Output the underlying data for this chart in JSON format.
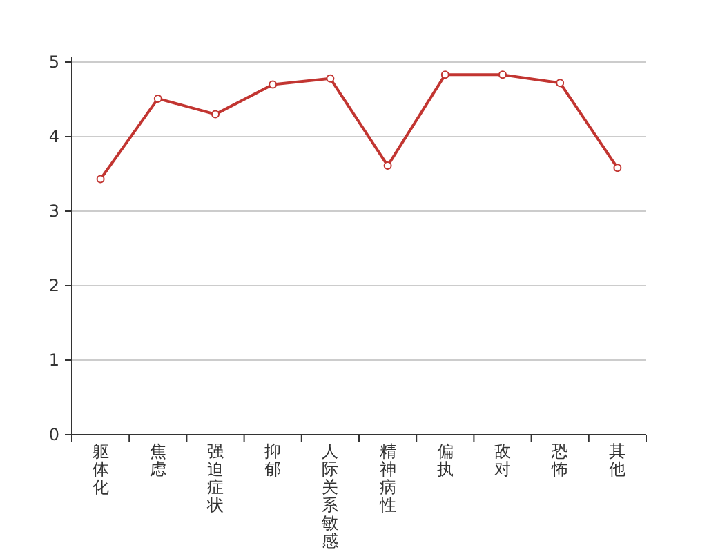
{
  "chart_data": {
    "type": "line",
    "categories": [
      "躯体化",
      "焦虑",
      "强迫症状",
      "抑郁",
      "人际关系敏感",
      "精神病性",
      "偏执",
      "敌对",
      "恐怖",
      "其他"
    ],
    "values": [
      3.43,
      4.51,
      4.3,
      4.7,
      4.78,
      3.61,
      4.83,
      4.83,
      4.72,
      3.58
    ],
    "color": "#c23531",
    "ylim": [
      0,
      5
    ],
    "yticks": [
      0,
      1,
      2,
      3,
      4,
      5
    ],
    "grid": "y",
    "marker": "circle"
  }
}
